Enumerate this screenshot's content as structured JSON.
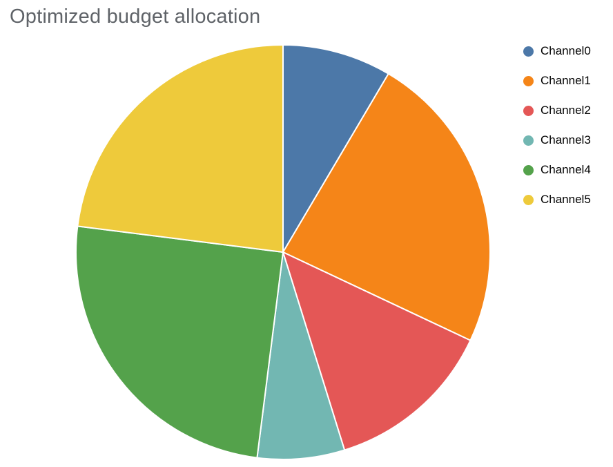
{
  "title": "Optimized budget allocation",
  "chart_data": {
    "type": "pie",
    "title": "Optimized budget allocation",
    "labels": [
      "Channel0",
      "Channel1",
      "Channel2",
      "Channel3",
      "Channel4",
      "Channel5"
    ],
    "values": [
      8.5,
      23.5,
      13.2,
      6.8,
      25.0,
      23.0
    ],
    "colors": [
      "#4c78a8",
      "#f58518",
      "#e45756",
      "#72b7b2",
      "#54a24b",
      "#eeca3b"
    ],
    "start_angle_deg": 0,
    "direction": "clockwise",
    "legend_position": "right",
    "legend_title": "",
    "slice_gap_color": "#ffffff",
    "title_color": "#5f6368",
    "background_color": "#ffffff"
  }
}
